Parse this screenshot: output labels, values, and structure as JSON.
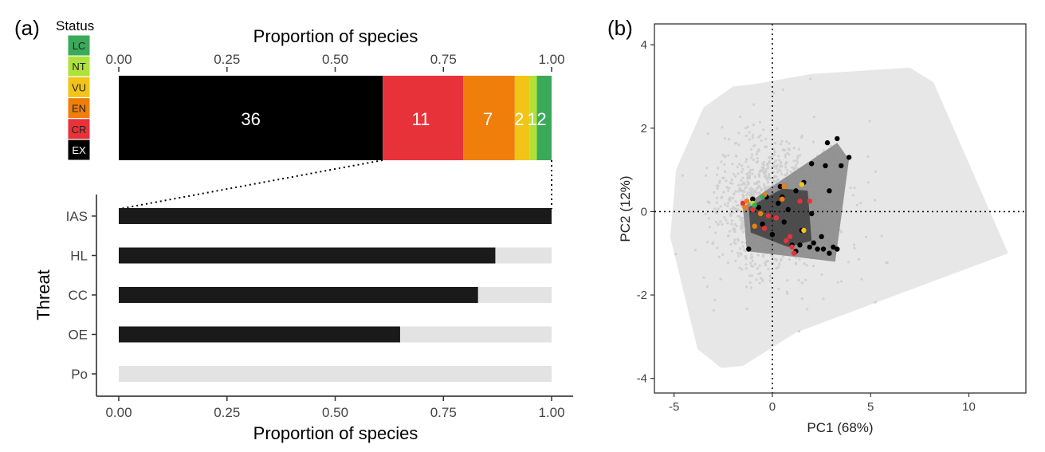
{
  "panel_a": {
    "label": "(a)",
    "legend": {
      "title": "Status",
      "items": [
        {
          "code": "LC",
          "color": "#3aa95a"
        },
        {
          "code": "NT",
          "color": "#aee23a"
        },
        {
          "code": "VU",
          "color": "#f2c417"
        },
        {
          "code": "EN",
          "color": "#ef7f0a"
        },
        {
          "code": "CR",
          "color": "#e8323a"
        },
        {
          "code": "EX",
          "color": "#000000"
        }
      ]
    }
  },
  "panel_b": {
    "label": "(b)"
  },
  "chart_data": [
    {
      "type": "bar",
      "orientation": "horizontal-stacked",
      "xlabel": "Proportion of species",
      "xlim": [
        0,
        1
      ],
      "xticks": [
        "0.00",
        "0.25",
        "0.50",
        "0.75",
        "1.00"
      ],
      "axis_position": "top",
      "series": [
        {
          "name": "EX",
          "count": 36,
          "value": 0.61,
          "color": "#000000"
        },
        {
          "name": "CR",
          "count": 11,
          "value": 0.186,
          "color": "#e8323a"
        },
        {
          "name": "EN",
          "count": 7,
          "value": 0.119,
          "color": "#ef7f0a"
        },
        {
          "name": "VU",
          "count": 2,
          "value": 0.034,
          "color": "#f2c417"
        },
        {
          "name": "NT",
          "count": 1,
          "value": 0.017,
          "color": "#aee23a"
        },
        {
          "name": "LC",
          "count": 2,
          "value": 0.034,
          "color": "#3aa95a"
        }
      ]
    },
    {
      "type": "bar",
      "orientation": "horizontal",
      "xlabel": "Proportion of species",
      "ylabel": "Threat",
      "xlim": [
        0,
        1
      ],
      "xticks": [
        "0.00",
        "0.25",
        "0.50",
        "0.75",
        "1.00"
      ],
      "categories": [
        "IAS",
        "HL",
        "CC",
        "OE",
        "Po"
      ],
      "values": [
        1.0,
        0.87,
        0.83,
        0.65,
        0.0
      ],
      "bar_color": "#1a1a1a",
      "background_color": "#e3e3e3"
    },
    {
      "type": "scatter",
      "xlabel": "PC1 (68%)",
      "ylabel": "PC2 (12%)",
      "xlim": [
        -6,
        12.9
      ],
      "ylim": [
        -4.35,
        4.5
      ],
      "xticks": [
        -5,
        0,
        5,
        10
      ],
      "yticks": [
        4,
        2,
        0,
        -2,
        -4
      ],
      "reference_lines": {
        "x": 0,
        "y": 0,
        "style": "dotted"
      },
      "background_hull": [
        [
          -5.0,
          0.4
        ],
        [
          -4.9,
          1.0
        ],
        [
          -3.5,
          2.5
        ],
        [
          -2.0,
          3.0
        ],
        [
          -1.0,
          3.05
        ],
        [
          2.0,
          3.3
        ],
        [
          7.0,
          3.45
        ],
        [
          8.2,
          3.1
        ],
        [
          12.0,
          -1.0
        ],
        [
          1.2,
          -2.9
        ],
        [
          -1.5,
          -3.7
        ],
        [
          -2.6,
          -3.75
        ],
        [
          -3.8,
          -3.3
        ],
        [
          -5.2,
          -0.6
        ]
      ],
      "background_points_color": "#cccccc",
      "background_hull_color": "#e7e7e7",
      "species_hull": [
        [
          -1.5,
          0.1
        ],
        [
          -0.5,
          0.45
        ],
        [
          3.3,
          1.65
        ],
        [
          3.9,
          1.25
        ],
        [
          3.2,
          -1.2
        ],
        [
          -1.3,
          -0.95
        ]
      ],
      "species_hull_color": "#8a8a8a",
      "core_hull": [
        [
          -1.2,
          0.1
        ],
        [
          0.5,
          0.55
        ],
        [
          1.8,
          0.5
        ],
        [
          2.0,
          -0.7
        ],
        [
          0.8,
          -0.85
        ],
        [
          -1.1,
          -0.5
        ]
      ],
      "core_hull_color": "#4c4c4c",
      "species_points": [
        {
          "x": 2.8,
          "y": 1.65,
          "status": "EX"
        },
        {
          "x": 3.3,
          "y": 1.75,
          "status": "EX"
        },
        {
          "x": 3.9,
          "y": 1.3,
          "status": "EX"
        },
        {
          "x": 3.5,
          "y": 1.1,
          "status": "EX"
        },
        {
          "x": 2.7,
          "y": 1.1,
          "status": "EX"
        },
        {
          "x": 2.0,
          "y": 1.15,
          "status": "EX"
        },
        {
          "x": 2.9,
          "y": 0.5,
          "status": "EX"
        },
        {
          "x": 1.6,
          "y": 0.7,
          "status": "EX"
        },
        {
          "x": 0.4,
          "y": 0.6,
          "status": "EX"
        },
        {
          "x": 1.2,
          "y": 0.5,
          "status": "EX"
        },
        {
          "x": 0.3,
          "y": 0.2,
          "status": "EX"
        },
        {
          "x": -0.3,
          "y": 0.35,
          "status": "EX"
        },
        {
          "x": -1.0,
          "y": 0.3,
          "status": "EX"
        },
        {
          "x": -1.2,
          "y": -0.9,
          "status": "EX"
        },
        {
          "x": -0.5,
          "y": -0.3,
          "status": "EX"
        },
        {
          "x": 0.6,
          "y": -0.25,
          "status": "EX"
        },
        {
          "x": 1.0,
          "y": -0.8,
          "status": "EX"
        },
        {
          "x": 1.4,
          "y": -0.8,
          "status": "EX"
        },
        {
          "x": 1.9,
          "y": -0.85,
          "status": "EX"
        },
        {
          "x": 2.1,
          "y": -0.75,
          "status": "EX"
        },
        {
          "x": 2.3,
          "y": -0.9,
          "status": "EX"
        },
        {
          "x": 2.6,
          "y": -0.9,
          "status": "EX"
        },
        {
          "x": 2.9,
          "y": -1.0,
          "status": "EX"
        },
        {
          "x": 3.1,
          "y": -0.85,
          "status": "EX"
        },
        {
          "x": 3.3,
          "y": -0.9,
          "status": "EX"
        },
        {
          "x": 1.2,
          "y": -0.95,
          "status": "EX"
        },
        {
          "x": 2.5,
          "y": -0.6,
          "status": "EX"
        },
        {
          "x": 1.5,
          "y": -0.45,
          "status": "EX"
        },
        {
          "x": 0.8,
          "y": 0.05,
          "status": "EX"
        },
        {
          "x": -0.7,
          "y": 0.1,
          "status": "EX"
        },
        {
          "x": 0.0,
          "y": -0.55,
          "status": "EX"
        },
        {
          "x": 2.0,
          "y": -0.05,
          "status": "EX"
        },
        {
          "x": 0.5,
          "y": 0.35,
          "status": "EX"
        },
        {
          "x": -1.5,
          "y": 0.2,
          "status": "CR"
        },
        {
          "x": -1.0,
          "y": 0.05,
          "status": "CR"
        },
        {
          "x": -0.2,
          "y": -0.1,
          "status": "CR"
        },
        {
          "x": 1.4,
          "y": 0.25,
          "status": "CR"
        },
        {
          "x": 1.1,
          "y": -1.0,
          "status": "CR"
        },
        {
          "x": 0.7,
          "y": -0.7,
          "status": "CR"
        },
        {
          "x": -0.4,
          "y": -0.4,
          "status": "CR"
        },
        {
          "x": 0.2,
          "y": -0.15,
          "status": "CR"
        },
        {
          "x": 1.0,
          "y": -0.85,
          "status": "CR"
        },
        {
          "x": 1.9,
          "y": 0.25,
          "status": "CR"
        },
        {
          "x": 0.9,
          "y": -0.6,
          "status": "CR"
        },
        {
          "x": -0.6,
          "y": -0.05,
          "status": "EN"
        },
        {
          "x": 0.5,
          "y": 0.3,
          "status": "EN"
        },
        {
          "x": -1.3,
          "y": 0.25,
          "status": "EN"
        },
        {
          "x": -1.4,
          "y": 0.1,
          "status": "EN"
        },
        {
          "x": 0.6,
          "y": 0.6,
          "status": "EN"
        },
        {
          "x": -0.9,
          "y": -0.35,
          "status": "EN"
        },
        {
          "x": -0.4,
          "y": 0.4,
          "status": "EN"
        },
        {
          "x": 1.5,
          "y": 0.65,
          "status": "VU"
        },
        {
          "x": 1.6,
          "y": -0.45,
          "status": "VU"
        },
        {
          "x": -1.0,
          "y": 0.2,
          "status": "NT"
        },
        {
          "x": -0.5,
          "y": 0.35,
          "status": "LC"
        },
        {
          "x": -0.9,
          "y": 0.15,
          "status": "LC"
        }
      ]
    }
  ]
}
